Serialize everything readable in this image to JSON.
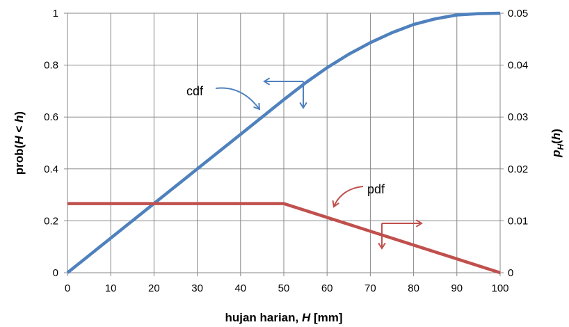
{
  "chart_data": {
    "type": "line",
    "xlabel": "hujan harian, H [mm]",
    "ylabel_left": "prob(H < h)",
    "ylabel_right": "pH(h)",
    "xlim": [
      0,
      100
    ],
    "ylim_left": [
      0,
      1
    ],
    "ylim_right": [
      0,
      0.05
    ],
    "x_ticks": [
      "0",
      "10",
      "20",
      "30",
      "40",
      "50",
      "60",
      "70",
      "80",
      "90",
      "100"
    ],
    "y_left_ticks": [
      "0",
      "0.2",
      "0.4",
      "0.6",
      "0.8",
      "1"
    ],
    "y_right_ticks": [
      "0",
      "0.01",
      "0.02",
      "0.03",
      "0.04",
      "0.05"
    ],
    "grid": true,
    "series": [
      {
        "name": "cdf",
        "axis": "left",
        "color": "#4F81BD",
        "x": [
          0,
          10,
          20,
          30,
          40,
          50,
          55,
          60,
          65,
          70,
          75,
          80,
          85,
          90,
          95,
          100
        ],
        "y": [
          0,
          0.1333,
          0.2667,
          0.4,
          0.5333,
          0.6667,
          0.7317,
          0.79,
          0.8417,
          0.8867,
          0.925,
          0.9567,
          0.9783,
          0.9933,
          0.9983,
          1.0
        ]
      },
      {
        "name": "pdf",
        "axis": "right",
        "color": "#C0504D",
        "x": [
          0,
          50,
          100
        ],
        "y": [
          0.01333,
          0.01333,
          0
        ]
      }
    ],
    "annotations": [
      {
        "text": "cdf"
      },
      {
        "text": "pdf"
      }
    ]
  }
}
